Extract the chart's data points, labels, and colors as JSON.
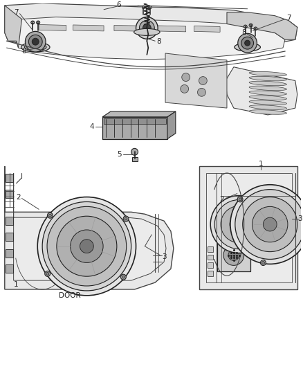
{
  "background_color": "#ffffff",
  "line_color": "#444444",
  "dark_color": "#222222",
  "gray1": "#e8e8e8",
  "gray2": "#cccccc",
  "gray3": "#aaaaaa",
  "gray4": "#888888",
  "gray5": "#555555",
  "figsize": [
    4.38,
    5.33
  ],
  "dpi": 100,
  "label_fontsize": 7.5,
  "door_fontsize": 7.5
}
